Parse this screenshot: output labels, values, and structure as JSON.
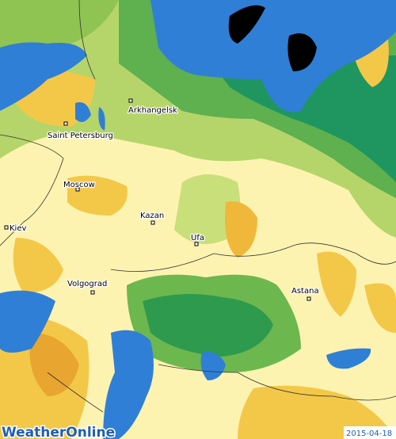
{
  "map": {
    "cities": [
      {
        "label": "Arkhangelsk"
      },
      {
        "label": "Saint Petersburg"
      },
      {
        "label": "Moscow"
      },
      {
        "label": "Kiev"
      },
      {
        "label": "Kazan"
      },
      {
        "label": "Ufa"
      },
      {
        "label": "Volgograd"
      },
      {
        "label": "Astana"
      }
    ],
    "logo": "WeatherOnline",
    "date": "2015-04-18"
  }
}
